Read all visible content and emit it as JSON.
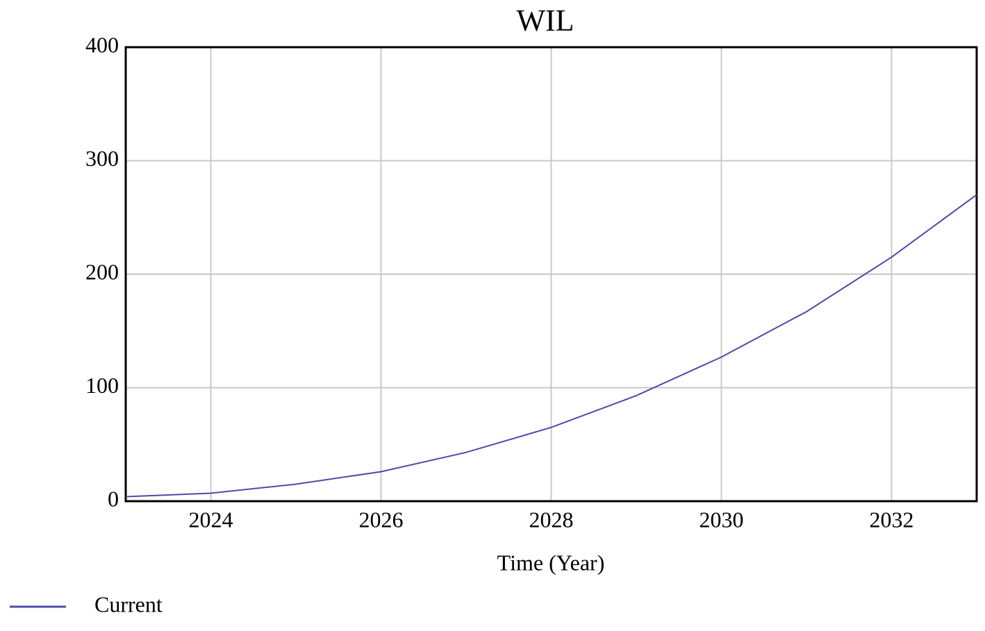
{
  "chart_data": {
    "type": "line",
    "title": "WIL",
    "x_label": "Time (Year)",
    "x": [
      2023,
      2024,
      2025,
      2026,
      2027,
      2028,
      2029,
      2030,
      2031,
      2032,
      2033
    ],
    "series": [
      {
        "name": "Current",
        "color": "#4b4ba8",
        "values": [
          4,
          7,
          15,
          26,
          43,
          65,
          93,
          127,
          167,
          215,
          270
        ]
      }
    ],
    "xlim": [
      2023,
      2033
    ],
    "xticks": [
      2024,
      2026,
      2028,
      2030,
      2032
    ],
    "ylim": [
      0,
      400
    ],
    "yticks": [
      0,
      100,
      200,
      300,
      400
    ],
    "grid": true,
    "legend": "bottom-left"
  }
}
